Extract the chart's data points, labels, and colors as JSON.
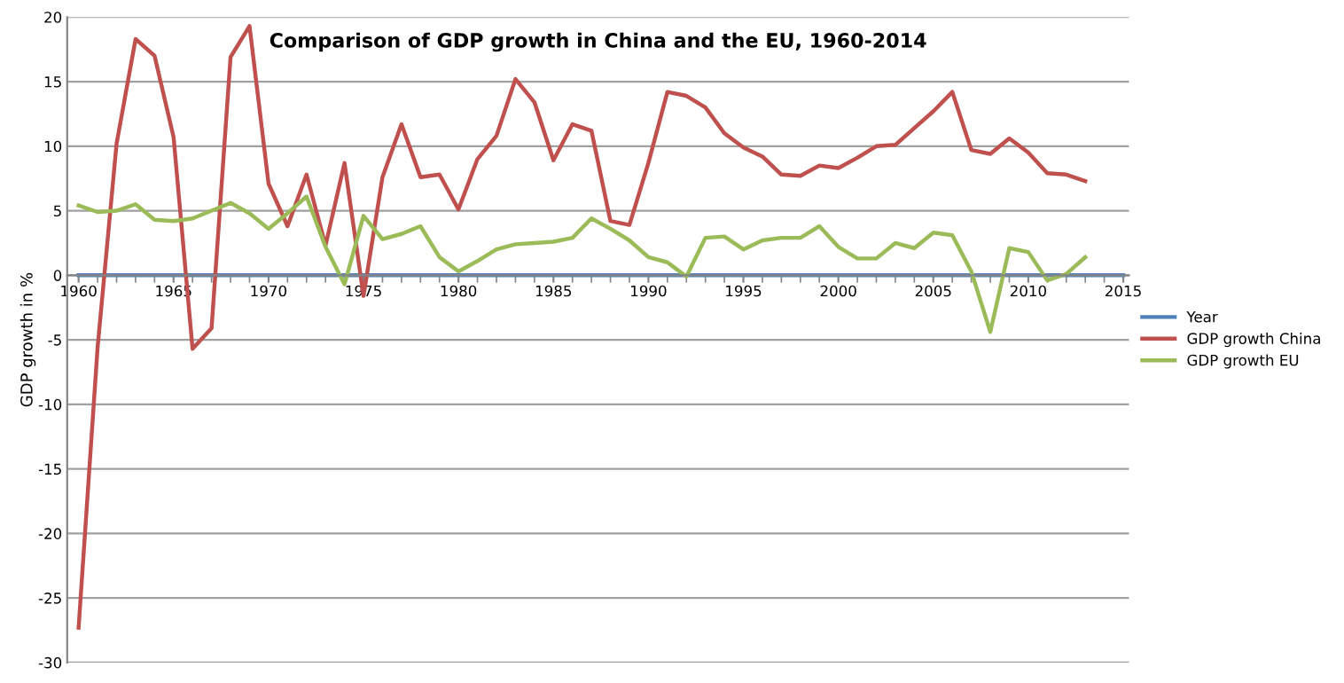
{
  "chart_data": {
    "type": "line",
    "title": "Comparison of GDP growth in China and the EU, 1960-2014",
    "ylabel": "GDP growth in %",
    "x": [
      1960,
      1961,
      1962,
      1963,
      1964,
      1965,
      1966,
      1967,
      1968,
      1969,
      1970,
      1971,
      1972,
      1973,
      1974,
      1975,
      1976,
      1977,
      1978,
      1979,
      1980,
      1981,
      1982,
      1983,
      1984,
      1985,
      1986,
      1987,
      1988,
      1989,
      1990,
      1991,
      1992,
      1993,
      1994,
      1995,
      1996,
      1997,
      1998,
      1999,
      2000,
      2001,
      2002,
      2003,
      2004,
      2005,
      2006,
      2007,
      2008,
      2009,
      2010,
      2011,
      2012,
      2013
    ],
    "series": [
      {
        "name": "Year",
        "color": "#4f81bd",
        "x": [
          1960,
          2015
        ],
        "values": [
          0,
          0
        ]
      },
      {
        "name": "GDP growth China",
        "color": "#c0504d",
        "values": [
          -27.3,
          -5.6,
          10.2,
          18.3,
          17.0,
          10.7,
          -5.7,
          -4.1,
          16.9,
          19.3,
          7.1,
          3.8,
          7.8,
          2.3,
          8.7,
          -1.6,
          7.6,
          11.7,
          7.6,
          7.8,
          5.1,
          9.0,
          10.8,
          15.2,
          13.4,
          8.9,
          11.7,
          11.2,
          4.2,
          3.9,
          8.7,
          14.2,
          13.9,
          13.0,
          11.0,
          9.9,
          9.2,
          7.8,
          7.7,
          8.5,
          8.3,
          9.1,
          10.0,
          10.1,
          11.4,
          12.7,
          14.2,
          9.7,
          9.4,
          10.6,
          9.5,
          7.9,
          7.8,
          7.3
        ]
      },
      {
        "name": "GDP growth EU",
        "color": "#9bbb59",
        "values": [
          5.4,
          4.9,
          5.0,
          5.5,
          4.3,
          4.2,
          4.4,
          5.0,
          5.6,
          4.8,
          3.6,
          4.8,
          6.1,
          2.2,
          -0.7,
          4.6,
          2.8,
          3.2,
          3.8,
          1.4,
          0.3,
          1.1,
          2.0,
          2.4,
          2.5,
          2.6,
          2.9,
          4.4,
          3.6,
          2.7,
          1.4,
          1.0,
          -0.1,
          2.9,
          3.0,
          2.0,
          2.7,
          2.9,
          2.9,
          3.8,
          2.2,
          1.3,
          1.3,
          2.5,
          2.1,
          3.3,
          3.1,
          0.3,
          -4.4,
          2.1,
          1.8,
          -0.4,
          0.1,
          1.4
        ]
      }
    ],
    "xlim": [
      1959.4,
      2015.3
    ],
    "xticks": [
      1960,
      1965,
      1970,
      1975,
      1980,
      1985,
      1990,
      1995,
      2000,
      2005,
      2010,
      2015
    ],
    "ylim": [
      -30,
      20
    ],
    "yticks": [
      -30,
      -25,
      -20,
      -15,
      -10,
      -5,
      0,
      5,
      10,
      15,
      20
    ],
    "grid": "y",
    "legend": "right",
    "line_style": "solid",
    "marker": "none"
  }
}
